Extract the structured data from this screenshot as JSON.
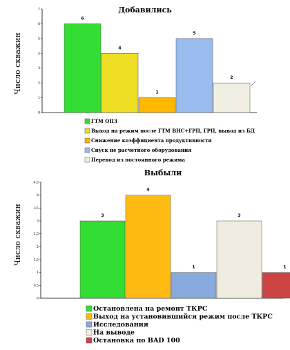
{
  "chart_data": [
    {
      "type": "bar",
      "title": "Добавились",
      "ylabel": "Число скважин",
      "ylim": [
        0,
        7
      ],
      "yticks": [
        "0",
        "1",
        "2",
        "3",
        "4",
        "5",
        "6",
        "7"
      ],
      "categories": [
        "ГТМ ОПЗ",
        "Выход на режим после ГТМ ВНС+ГРП, ГРП, вывод из БД",
        "Снижение коэффициента продуктивности",
        "Спуск не расчетного оборудования",
        "Перевод из постоянного режима"
      ],
      "values": [
        6,
        4,
        1,
        5,
        2
      ],
      "colors": [
        "#33dd33",
        "#eedd22",
        "#ffb700",
        "#99bbee",
        "#f1efe2"
      ],
      "legend_position": "bottom",
      "grid": false
    },
    {
      "type": "bar",
      "title": "Выбыли",
      "ylabel": "Число скважин",
      "ylim": [
        0,
        4.5
      ],
      "yticks": [
        "0",
        "0,5",
        "1",
        "1,5",
        "2",
        "2,5",
        "3",
        "3,5",
        "4",
        "4,5"
      ],
      "categories": [
        "Остановлена на ремонт ТКРС",
        "Выход на установившийся режим после ТКРС",
        "Исследования",
        "На выводе",
        "Остановка по BAD 100"
      ],
      "values": [
        3,
        4,
        1,
        3,
        1
      ],
      "colors": [
        "#33dd33",
        "#ffbb11",
        "#88aadd",
        "#f0ecdf",
        "#cc4444"
      ],
      "legend_position": "bottom",
      "grid": false
    }
  ]
}
